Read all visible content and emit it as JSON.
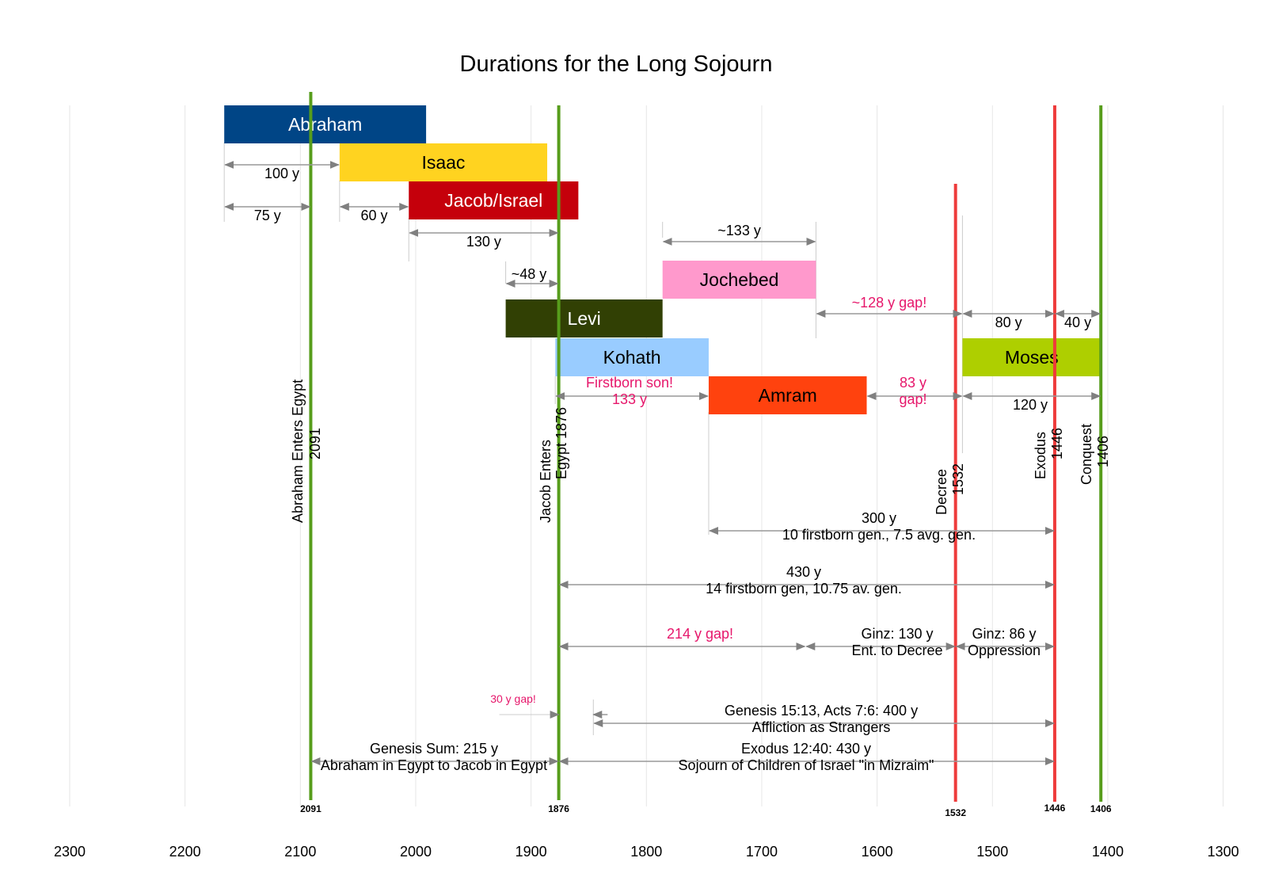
{
  "chart_data": {
    "type": "timeline",
    "title": "Durations for the Long Sojourn",
    "axis": {
      "direction": "descending years (BC), left to right",
      "range": [
        2300,
        1300
      ],
      "ticks": [
        2300,
        2200,
        2100,
        2000,
        1900,
        1800,
        1700,
        1600,
        1500,
        1400,
        1300
      ],
      "grid": true
    },
    "bars": [
      {
        "name": "Abraham",
        "start": 2166,
        "end": 1991,
        "row": 0,
        "color": "#004586",
        "text_color": "#ffffff"
      },
      {
        "name": "Isaac",
        "start": 2066,
        "end": 1886,
        "row": 1,
        "color": "#ffd320",
        "text_color": "#000000"
      },
      {
        "name": "Jacob/Israel",
        "start": 2006,
        "end": 1859,
        "row": 2,
        "color": "#c5000b",
        "text_color": "#ffffff"
      },
      {
        "name": "Jochebed",
        "start": 1786,
        "end": 1653,
        "row": 4,
        "color": "#ff99cc",
        "text_color": "#000000"
      },
      {
        "name": "Levi",
        "start": 1922,
        "end": 1786,
        "row": 5,
        "color": "#314004",
        "text_color": "#ffffff"
      },
      {
        "name": "Kohath",
        "start": 1879,
        "end": 1746,
        "row": 6,
        "color": "#99ccff",
        "text_color": "#000000"
      },
      {
        "name": "Moses",
        "start": 1526,
        "end": 1406,
        "row": 6,
        "color": "#aecf00",
        "text_color": "#000000"
      },
      {
        "name": "Amram",
        "start": 1746,
        "end": 1609,
        "row": 7,
        "color": "#ff420e",
        "text_color": "#000000"
      }
    ],
    "events": [
      {
        "year": 2091,
        "label": [
          "Abraham Enters Egypt",
          "2091"
        ],
        "color": "#579d1c",
        "bottom_label": "2091"
      },
      {
        "year": 1876,
        "label": [
          "Jacob Enters",
          "Egypt 1876"
        ],
        "color": "#579d1c",
        "bottom_label": "1876"
      },
      {
        "year": 1532,
        "label": [
          "Decree",
          "1532"
        ],
        "color": "#ee3b3b",
        "bottom_label": "1532"
      },
      {
        "year": 1446,
        "label": [
          "Exodus",
          "1446"
        ],
        "color": "#ee3b3b",
        "bottom_label": "1446"
      },
      {
        "year": 1406,
        "label": [
          "Conquest",
          "1406"
        ],
        "color": "#579d1c",
        "bottom_label": "1406"
      }
    ],
    "spans": [
      {
        "from": 2166,
        "to": 2066,
        "label": [
          "100 y"
        ],
        "label_color": "#000000"
      },
      {
        "from": 2166,
        "to": 2091,
        "label": [
          "75 y"
        ],
        "label_color": "#000000"
      },
      {
        "from": 2066,
        "to": 2006,
        "label": [
          "60 y"
        ],
        "label_color": "#000000"
      },
      {
        "from": 2006,
        "to": 1876,
        "label": [
          "130 y"
        ],
        "label_color": "#000000"
      },
      {
        "from": 1786,
        "to": 1653,
        "label": [
          "~133 y"
        ],
        "label_color": "#000000"
      },
      {
        "from": 1922,
        "to": 1876,
        "label": [
          "~48 y"
        ],
        "label_color": "#000000"
      },
      {
        "from": 1653,
        "to": 1526,
        "label": [
          "~128 y gap!"
        ],
        "label_color": "#e6176b"
      },
      {
        "from": 1526,
        "to": 1446,
        "label": [
          "80 y"
        ],
        "label_color": "#000000"
      },
      {
        "from": 1446,
        "to": 1406,
        "label": [
          "40 y"
        ],
        "label_color": "#000000"
      },
      {
        "from": 1879,
        "to": 1746,
        "label": [
          "Firstborn son!",
          "133 y"
        ],
        "label_color": "#e6176b"
      },
      {
        "from": 1609,
        "to": 1526,
        "label": [
          "83 y",
          "gap!"
        ],
        "label_color": "#e6176b"
      },
      {
        "from": 1526,
        "to": 1406,
        "label": [
          "120 y"
        ],
        "label_color": "#000000"
      },
      {
        "from": 1746,
        "to": 1446,
        "label": [
          "300 y",
          "10 firstborn gen., 7.5 avg. gen."
        ],
        "label_color": "#000000"
      },
      {
        "from": 1876,
        "to": 1446,
        "label": [
          "430 y",
          "14 firstborn gen, 10.75 av. gen."
        ],
        "label_color": "#000000"
      },
      {
        "from": 1876,
        "to": 1662,
        "label": [
          "214 y gap!"
        ],
        "label_color": "#e6176b"
      },
      {
        "from": 1662,
        "to": 1532,
        "label": [
          "Ginz: 130 y",
          "Ent. to Decree"
        ],
        "label_color": "#000000"
      },
      {
        "from": 1532,
        "to": 1446,
        "label": [
          "Ginz: 86 y",
          "Oppression"
        ],
        "label_color": "#000000"
      },
      {
        "from": 1876,
        "to": 1846,
        "label": [
          "30 y gap!"
        ],
        "label_color": "#e6176b"
      },
      {
        "from": 1846,
        "to": 1446,
        "label": [
          "Genesis 15:13, Acts 7:6: 400 y",
          "Affliction as Strangers"
        ],
        "label_color": "#000000"
      },
      {
        "from": 2091,
        "to": 1876,
        "label": [
          "Genesis Sum: 215 y",
          "Abraham in Egypt to Jacob in Egypt"
        ],
        "label_color": "#000000"
      },
      {
        "from": 1876,
        "to": 1446,
        "label": [
          "Exodus 12:40: 430 y",
          "Sojourn of Children of Israel \"in Mizraim\""
        ],
        "label_color": "#000000"
      }
    ]
  }
}
